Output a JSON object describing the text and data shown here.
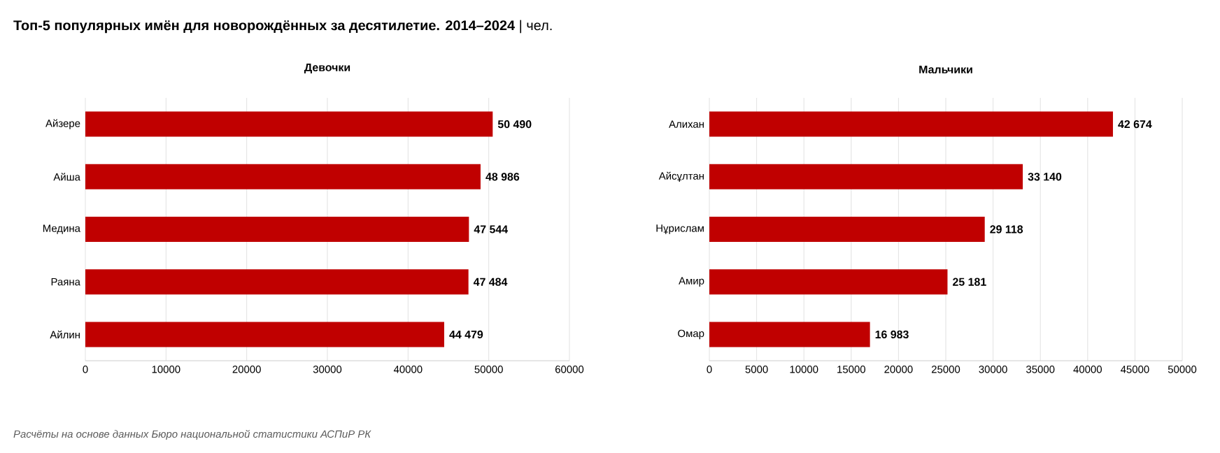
{
  "chart_data": [
    {
      "type": "other",
      "title": "**Топ-5 популярных имён для новорождённых за десятилетие. 2014–2024** | чел.",
      "annotations": [
        "Расчёты на основе данных Бюро национальной статистики АСПиР РК"
      ]
    },
    {
      "type": "bar",
      "orientation": "horizontal",
      "title": "Девочки",
      "categories": [
        "Айзере",
        "Айша",
        "Медина",
        "Раяна",
        "Айлин"
      ],
      "values": [
        50490,
        48986,
        47544,
        47484,
        44479
      ],
      "value_labels": [
        "50 490",
        "48 986",
        "47 544",
        "47 484",
        "44 479"
      ],
      "color": "#c00000",
      "xlim": [
        0,
        60000
      ],
      "xticks": [
        0,
        10000,
        20000,
        30000,
        40000,
        50000,
        60000
      ],
      "grid": "x"
    },
    {
      "type": "bar",
      "orientation": "horizontal",
      "title": "Мальчики",
      "categories": [
        "Алихан",
        "Айсұлтан",
        "Нұрислам",
        "Амир",
        "Омар"
      ],
      "values": [
        42674,
        33140,
        29118,
        25181,
        16983
      ],
      "value_labels": [
        "42 674",
        "33 140",
        "29 118",
        "25 181",
        "16 983"
      ],
      "color": "#c00000",
      "xlim": [
        0,
        50000
      ],
      "xticks": [
        0,
        5000,
        10000,
        15000,
        20000,
        25000,
        30000,
        35000,
        40000,
        45000,
        50000
      ],
      "grid": "x"
    }
  ]
}
